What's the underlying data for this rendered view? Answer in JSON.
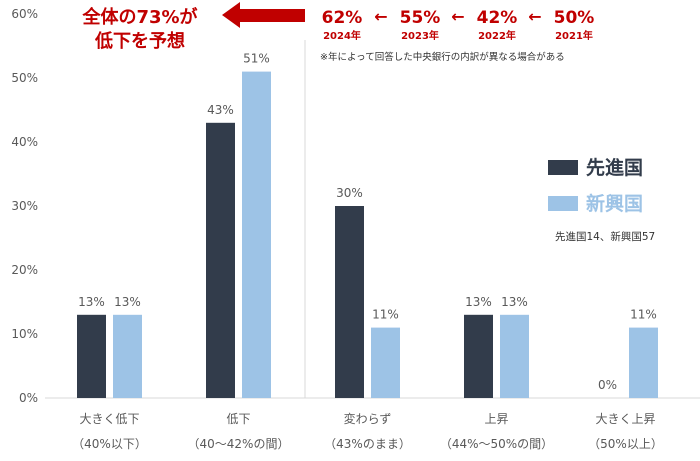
{
  "chart_data": {
    "type": "bar",
    "categories": [
      {
        "line1": "大きく低下",
        "line2": "（40%以下）"
      },
      {
        "line1": "低下",
        "line2": "（40～42%の間）"
      },
      {
        "line1": "変わらず",
        "line2": "（43%のまま）"
      },
      {
        "line1": "上昇",
        "line2": "（44%～50%の間）"
      },
      {
        "line1": "大きく上昇",
        "line2": "（50%以上）"
      }
    ],
    "series": [
      {
        "name": "先進国",
        "color": "#323c4b",
        "values": [
          13,
          43,
          30,
          13,
          0
        ]
      },
      {
        "name": "新興国",
        "color": "#9dc3e6",
        "values": [
          13,
          51,
          11,
          13,
          11
        ]
      }
    ],
    "value_labels": [
      [
        "13%",
        "43%",
        "30%",
        "13%",
        "0%"
      ],
      [
        "13%",
        "51%",
        "11%",
        "13%",
        "11%"
      ]
    ],
    "yticks": [
      "0%",
      "10%",
      "20%",
      "30%",
      "40%",
      "50%",
      "60%"
    ],
    "ylim": [
      0,
      60
    ],
    "legend_position": "right",
    "legend_note": "先進国14、新興国57",
    "annotation": {
      "headline_line1": "全体の73%が",
      "headline_line2": "低下を予想",
      "color": "#c00000",
      "trend": [
        {
          "value": "62%",
          "year": "2024年"
        },
        {
          "value": "55%",
          "year": "2023年"
        },
        {
          "value": "42%",
          "year": "2022年"
        },
        {
          "value": "50%",
          "year": "2021年"
        }
      ],
      "trend_separator": "←",
      "footnote": "※年によって回答した中央銀行の内訳が異なる場合がある"
    }
  }
}
